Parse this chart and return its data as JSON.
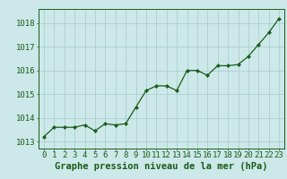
{
  "x": [
    0,
    1,
    2,
    3,
    4,
    5,
    6,
    7,
    8,
    9,
    10,
    11,
    12,
    13,
    14,
    15,
    16,
    17,
    18,
    19,
    20,
    21,
    22,
    23
  ],
  "y": [
    1013.2,
    1013.6,
    1013.6,
    1013.6,
    1013.7,
    1013.45,
    1013.75,
    1013.7,
    1013.75,
    1014.45,
    1015.15,
    1015.35,
    1015.35,
    1015.15,
    1016.0,
    1016.0,
    1015.8,
    1016.2,
    1016.2,
    1016.25,
    1016.6,
    1017.1,
    1017.6,
    1018.2
  ],
  "line_color": "#1a5c1a",
  "marker_color": "#1a5c1a",
  "bg_color": "#cce8e8",
  "grid_color": "#aad0d0",
  "ylabel_ticks": [
    1013,
    1014,
    1015,
    1016,
    1017,
    1018
  ],
  "xlabel": "Graphe pression niveau de la mer (hPa)",
  "ylim": [
    1012.7,
    1018.6
  ],
  "xlim": [
    -0.5,
    23.5
  ],
  "line_color_dark": "#1a5c1a",
  "tick_fontsize": 6.5,
  "xlabel_fontsize": 7.5
}
